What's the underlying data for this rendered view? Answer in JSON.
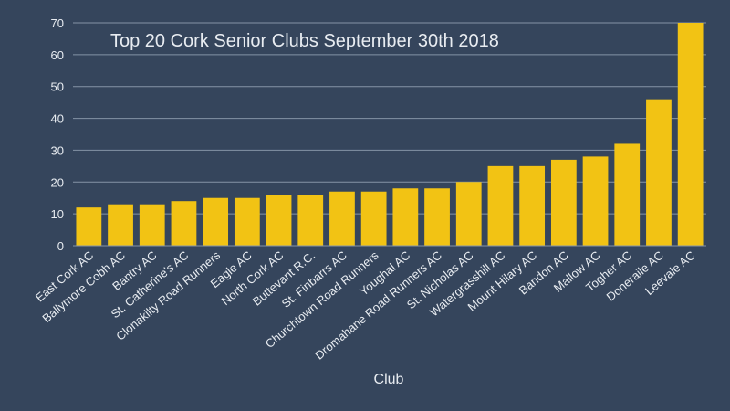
{
  "chart_data": {
    "type": "bar",
    "title": "Top 20 Cork Senior Clubs September 30th 2018",
    "xlabel": "Club",
    "ylabel": "",
    "ylim": [
      0,
      70
    ],
    "yticks": [
      0,
      10,
      20,
      30,
      40,
      50,
      60,
      70
    ],
    "grid": true,
    "legend": "none",
    "bar_color": "#f2c314",
    "background_color": "#35455c",
    "grid_color": "#8593a6",
    "categories": [
      "East Cork AC",
      "Ballymore Cobh AC",
      "Bantry AC",
      "St. Catherine's AC",
      "Clonakilty Road Runners",
      "Eagle AC",
      "North Cork AC",
      "Buttevant R.C.",
      "St. Finbarrs AC",
      "Churchtown Road Runners",
      "Youghal AC",
      "Dromahane Road Runners AC",
      "St. Nicholas AC",
      "Watergrasshill AC",
      "Mount Hilary AC",
      "Bandon AC",
      "Mallow AC",
      "Togher AC",
      "Doneraile AC",
      "Leevale AC"
    ],
    "values": [
      12,
      13,
      13,
      14,
      15,
      15,
      16,
      16,
      17,
      17,
      18,
      18,
      20,
      25,
      25,
      27,
      28,
      32,
      46,
      70
    ]
  }
}
